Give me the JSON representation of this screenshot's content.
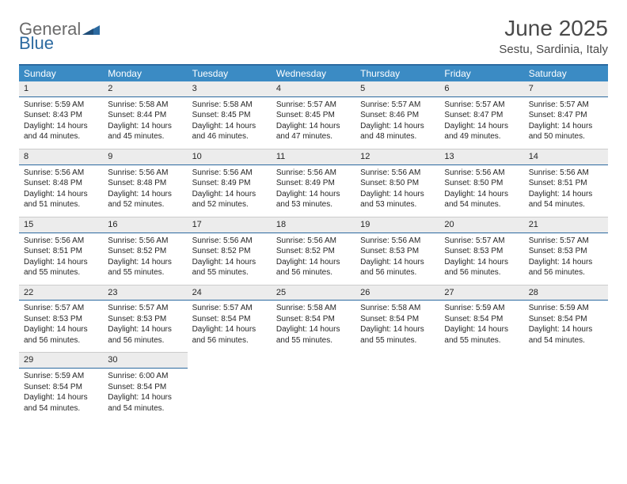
{
  "logo": {
    "text1": "General",
    "text2": "Blue"
  },
  "title": "June 2025",
  "location": "Sestu, Sardinia, Italy",
  "colors": {
    "header_bg": "#3b8bc4",
    "header_text": "#ffffff",
    "rule": "#2c6aa0",
    "daynum_bg": "#ececec",
    "body_text": "#262626",
    "logo_gray": "#6b6b6b",
    "logo_blue": "#2c6aa0"
  },
  "day_names": [
    "Sunday",
    "Monday",
    "Tuesday",
    "Wednesday",
    "Thursday",
    "Friday",
    "Saturday"
  ],
  "weeks": [
    [
      {
        "num": "1",
        "sunrise": "5:59 AM",
        "sunset": "8:43 PM",
        "dl_h": "14",
        "dl_m": "44"
      },
      {
        "num": "2",
        "sunrise": "5:58 AM",
        "sunset": "8:44 PM",
        "dl_h": "14",
        "dl_m": "45"
      },
      {
        "num": "3",
        "sunrise": "5:58 AM",
        "sunset": "8:45 PM",
        "dl_h": "14",
        "dl_m": "46"
      },
      {
        "num": "4",
        "sunrise": "5:57 AM",
        "sunset": "8:45 PM",
        "dl_h": "14",
        "dl_m": "47"
      },
      {
        "num": "5",
        "sunrise": "5:57 AM",
        "sunset": "8:46 PM",
        "dl_h": "14",
        "dl_m": "48"
      },
      {
        "num": "6",
        "sunrise": "5:57 AM",
        "sunset": "8:47 PM",
        "dl_h": "14",
        "dl_m": "49"
      },
      {
        "num": "7",
        "sunrise": "5:57 AM",
        "sunset": "8:47 PM",
        "dl_h": "14",
        "dl_m": "50"
      }
    ],
    [
      {
        "num": "8",
        "sunrise": "5:56 AM",
        "sunset": "8:48 PM",
        "dl_h": "14",
        "dl_m": "51"
      },
      {
        "num": "9",
        "sunrise": "5:56 AM",
        "sunset": "8:48 PM",
        "dl_h": "14",
        "dl_m": "52"
      },
      {
        "num": "10",
        "sunrise": "5:56 AM",
        "sunset": "8:49 PM",
        "dl_h": "14",
        "dl_m": "52"
      },
      {
        "num": "11",
        "sunrise": "5:56 AM",
        "sunset": "8:49 PM",
        "dl_h": "14",
        "dl_m": "53"
      },
      {
        "num": "12",
        "sunrise": "5:56 AM",
        "sunset": "8:50 PM",
        "dl_h": "14",
        "dl_m": "53"
      },
      {
        "num": "13",
        "sunrise": "5:56 AM",
        "sunset": "8:50 PM",
        "dl_h": "14",
        "dl_m": "54"
      },
      {
        "num": "14",
        "sunrise": "5:56 AM",
        "sunset": "8:51 PM",
        "dl_h": "14",
        "dl_m": "54"
      }
    ],
    [
      {
        "num": "15",
        "sunrise": "5:56 AM",
        "sunset": "8:51 PM",
        "dl_h": "14",
        "dl_m": "55"
      },
      {
        "num": "16",
        "sunrise": "5:56 AM",
        "sunset": "8:52 PM",
        "dl_h": "14",
        "dl_m": "55"
      },
      {
        "num": "17",
        "sunrise": "5:56 AM",
        "sunset": "8:52 PM",
        "dl_h": "14",
        "dl_m": "55"
      },
      {
        "num": "18",
        "sunrise": "5:56 AM",
        "sunset": "8:52 PM",
        "dl_h": "14",
        "dl_m": "56"
      },
      {
        "num": "19",
        "sunrise": "5:56 AM",
        "sunset": "8:53 PM",
        "dl_h": "14",
        "dl_m": "56"
      },
      {
        "num": "20",
        "sunrise": "5:57 AM",
        "sunset": "8:53 PM",
        "dl_h": "14",
        "dl_m": "56"
      },
      {
        "num": "21",
        "sunrise": "5:57 AM",
        "sunset": "8:53 PM",
        "dl_h": "14",
        "dl_m": "56"
      }
    ],
    [
      {
        "num": "22",
        "sunrise": "5:57 AM",
        "sunset": "8:53 PM",
        "dl_h": "14",
        "dl_m": "56"
      },
      {
        "num": "23",
        "sunrise": "5:57 AM",
        "sunset": "8:53 PM",
        "dl_h": "14",
        "dl_m": "56"
      },
      {
        "num": "24",
        "sunrise": "5:57 AM",
        "sunset": "8:54 PM",
        "dl_h": "14",
        "dl_m": "56"
      },
      {
        "num": "25",
        "sunrise": "5:58 AM",
        "sunset": "8:54 PM",
        "dl_h": "14",
        "dl_m": "55"
      },
      {
        "num": "26",
        "sunrise": "5:58 AM",
        "sunset": "8:54 PM",
        "dl_h": "14",
        "dl_m": "55"
      },
      {
        "num": "27",
        "sunrise": "5:59 AM",
        "sunset": "8:54 PM",
        "dl_h": "14",
        "dl_m": "55"
      },
      {
        "num": "28",
        "sunrise": "5:59 AM",
        "sunset": "8:54 PM",
        "dl_h": "14",
        "dl_m": "54"
      }
    ],
    [
      {
        "num": "29",
        "sunrise": "5:59 AM",
        "sunset": "8:54 PM",
        "dl_h": "14",
        "dl_m": "54"
      },
      {
        "num": "30",
        "sunrise": "6:00 AM",
        "sunset": "8:54 PM",
        "dl_h": "14",
        "dl_m": "54"
      },
      null,
      null,
      null,
      null,
      null
    ]
  ],
  "labels": {
    "sunrise": "Sunrise:",
    "sunset": "Sunset:",
    "daylight_pre": "Daylight:",
    "daylight_mid": "hours and",
    "daylight_post": "minutes."
  }
}
